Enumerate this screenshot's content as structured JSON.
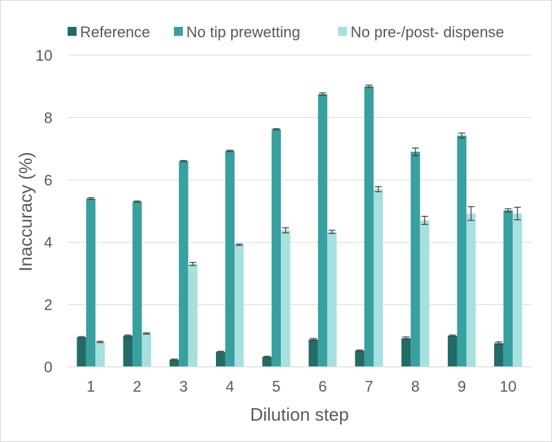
{
  "chart_data": {
    "type": "bar",
    "title": "",
    "xlabel": "Dilution step",
    "ylabel": "Inaccuracy (%)",
    "ylim": [
      0,
      10
    ],
    "yticks": [
      "0",
      "2",
      "4",
      "6",
      "8",
      "10"
    ],
    "categories": [
      "1",
      "2",
      "3",
      "4",
      "5",
      "6",
      "7",
      "8",
      "9",
      "10"
    ],
    "grid": true,
    "legend_position": "top",
    "series": [
      {
        "name": "Reference",
        "color": "#236b67",
        "values": [
          0.95,
          1.0,
          0.23,
          0.48,
          0.32,
          0.88,
          0.52,
          0.92,
          1.0,
          0.76
        ],
        "errors": [
          0.02,
          0.02,
          0.02,
          0.02,
          0.02,
          0.03,
          0.02,
          0.04,
          0.02,
          0.04
        ]
      },
      {
        "name": "No tip prewetting",
        "color": "#38a09f",
        "values": [
          5.4,
          5.3,
          6.6,
          6.93,
          7.62,
          8.75,
          9.0,
          6.9,
          7.42,
          5.02
        ],
        "errors": [
          0.03,
          0.02,
          0.02,
          0.02,
          0.02,
          0.04,
          0.04,
          0.12,
          0.08,
          0.05
        ]
      },
      {
        "name": "No pre-/post- dispense",
        "color": "#a6e1e0",
        "values": [
          0.8,
          1.07,
          3.3,
          3.92,
          4.38,
          4.33,
          5.7,
          4.7,
          4.92,
          4.92
        ],
        "errors": [
          0.02,
          0.02,
          0.05,
          0.02,
          0.08,
          0.05,
          0.08,
          0.13,
          0.22,
          0.2
        ]
      }
    ]
  }
}
